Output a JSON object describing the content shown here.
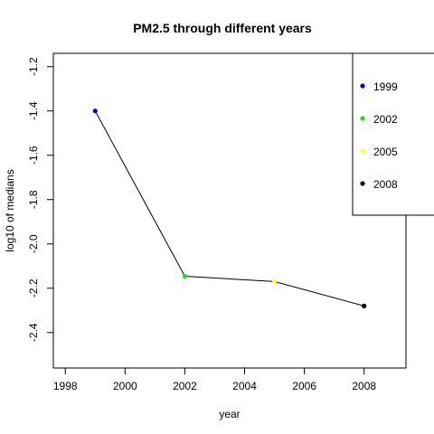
{
  "chart_data": {
    "type": "line",
    "title": "PM2.5 through different years",
    "xlabel": "year",
    "ylabel": "log10 of medians",
    "xlim": [
      1997.6,
      2009.4
    ],
    "ylim": [
      -2.56,
      -1.14
    ],
    "xticks": [
      1998,
      2000,
      2002,
      2004,
      2006,
      2008
    ],
    "yticks": [
      -2.4,
      -2.2,
      -2.0,
      -1.8,
      -1.6,
      -1.4,
      -1.2
    ],
    "ytick_labels": [
      "-2.4",
      "-2.2",
      "-2.0",
      "-1.8",
      "-1.6",
      "-1.4",
      "-1.2"
    ],
    "x": [
      1999,
      2002,
      2005,
      2008
    ],
    "y": [
      -1.4,
      -2.146,
      -2.17,
      -2.28
    ],
    "point_colors": [
      "#0000cc",
      "#22dd22",
      "#ffff33",
      "#000000"
    ],
    "line_color": "#000000",
    "legend": {
      "position": "top-right",
      "entries": [
        {
          "label": "1999",
          "color": "#0000cc"
        },
        {
          "label": "2002",
          "color": "#22dd22"
        },
        {
          "label": "2005",
          "color": "#ffff33"
        },
        {
          "label": "2008",
          "color": "#000000"
        }
      ]
    }
  }
}
